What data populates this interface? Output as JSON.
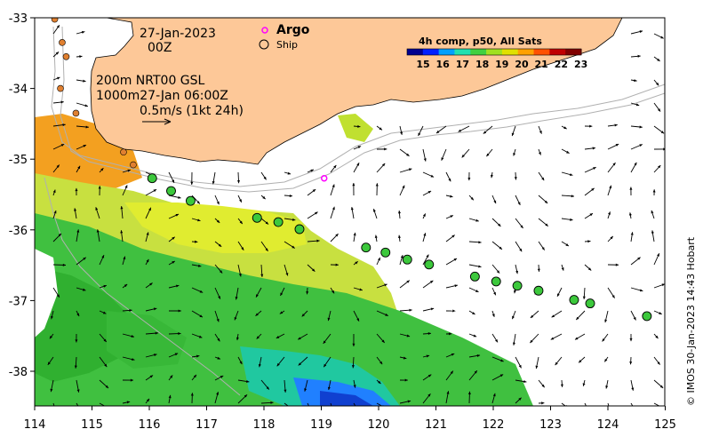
{
  "header": {
    "date": "27-Jan-2023",
    "time": "00Z"
  },
  "current_info": {
    "line1": "200m  NRT00 GSL",
    "line2": "1000m27-Jan 06:00Z",
    "line3": "0.5m/s (1kt 24h)"
  },
  "legend": {
    "argo_label": "Argo",
    "ship_label": "Ship",
    "argo_color": "#ff00ff"
  },
  "colorbar": {
    "title": "4h comp, p50, All Sats",
    "ticks": [
      "15",
      "16",
      "17",
      "18",
      "19",
      "20",
      "21",
      "22",
      "23"
    ],
    "colors": [
      "#00008f",
      "#0020ff",
      "#00a0ff",
      "#20e0b0",
      "#40d040",
      "#a0e020",
      "#e0e000",
      "#ffa000",
      "#ff5000",
      "#c00000",
      "#800000"
    ]
  },
  "credit": "© IMOS 30-Jan-2023 14:43 Hobart",
  "axes": {
    "x_ticks": [
      "114",
      "115",
      "116",
      "117",
      "118",
      "119",
      "120",
      "121",
      "122",
      "123",
      "124",
      "125"
    ],
    "y_ticks": [
      "-33",
      "-34",
      "-35",
      "-36",
      "-37",
      "-38"
    ]
  },
  "colors": {
    "land": "#fdc898",
    "ship_fill": "#3cc83c",
    "argo": "#ff00ff",
    "coast_ship": "#e08030"
  },
  "ships": [
    {
      "lon": 116.05,
      "lat": -35.27
    },
    {
      "lon": 116.38,
      "lat": -35.45
    },
    {
      "lon": 116.72,
      "lat": -35.59
    },
    {
      "lon": 117.88,
      "lat": -35.83
    },
    {
      "lon": 118.25,
      "lat": -35.89
    },
    {
      "lon": 118.62,
      "lat": -35.99
    },
    {
      "lon": 119.78,
      "lat": -36.25
    },
    {
      "lon": 120.12,
      "lat": -36.32
    },
    {
      "lon": 120.5,
      "lat": -36.42
    },
    {
      "lon": 120.88,
      "lat": -36.49
    },
    {
      "lon": 121.68,
      "lat": -36.66
    },
    {
      "lon": 122.05,
      "lat": -36.73
    },
    {
      "lon": 122.42,
      "lat": -36.79
    },
    {
      "lon": 122.79,
      "lat": -36.86
    },
    {
      "lon": 123.41,
      "lat": -36.99
    },
    {
      "lon": 123.69,
      "lat": -37.04
    },
    {
      "lon": 124.68,
      "lat": -37.22
    }
  ],
  "argo_floats": [
    {
      "lon": 119.05,
      "lat": -35.27
    }
  ],
  "coastal_dots": [
    {
      "lon": 114.35,
      "lat": -33.02
    },
    {
      "lon": 114.55,
      "lat": -33.55
    },
    {
      "lon": 114.48,
      "lat": -33.35
    },
    {
      "lon": 114.45,
      "lat": -34.0
    },
    {
      "lon": 114.72,
      "lat": -34.35
    },
    {
      "lon": 115.55,
      "lat": -34.9
    },
    {
      "lon": 115.72,
      "lat": -35.08
    }
  ]
}
